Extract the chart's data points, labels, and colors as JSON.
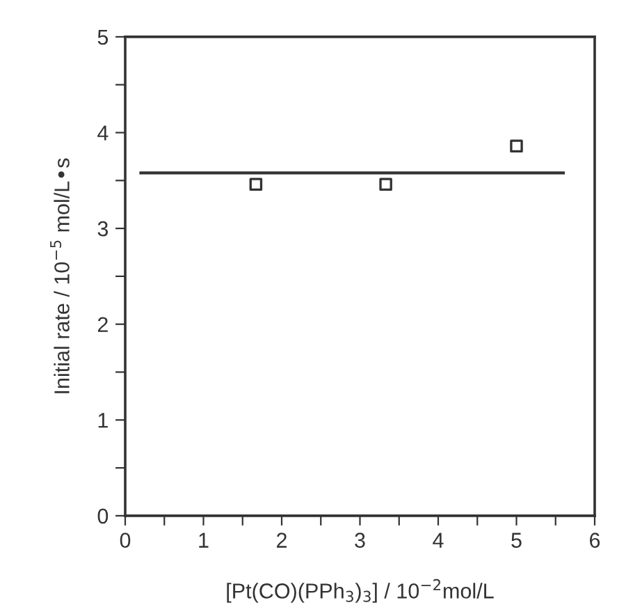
{
  "chart_data": {
    "type": "scatter",
    "xlabel": "[Pt(CO)(PPh$_{3}$)$_{3}$] / 10$^{−2}$mol/L",
    "ylabel": "Initial rate / 10$^{−5}$ mol/L•s",
    "series": [
      {
        "x": [
          1.67,
          3.33,
          5.0
        ],
        "values": [
          3.46,
          3.46,
          3.86
        ],
        "color": "#333333",
        "marker": "square"
      },
      {
        "type": "line",
        "x": [
          0.2,
          5.6
        ],
        "values": [
          3.58,
          3.58
        ],
        "color": "#333333",
        "marker": "none",
        "line_style": "solid"
      }
    ],
    "xlim": [
      0,
      6
    ],
    "ylim": [
      0,
      5
    ],
    "xticks": [
      0,
      {
        "value": 0.5,
        "label": null
      },
      1,
      {
        "value": 1.5,
        "label": null
      },
      2,
      {
        "value": 2.5,
        "label": null
      },
      3,
      {
        "value": 3.5,
        "label": null
      },
      4,
      {
        "value": 4.5,
        "label": null
      },
      5,
      {
        "value": 5.5,
        "label": null
      },
      6
    ],
    "yticks": [
      0,
      {
        "value": 0.5,
        "label": null
      },
      1,
      {
        "value": 1.5,
        "label": null
      },
      2,
      {
        "value": 2.5,
        "label": null
      },
      3,
      {
        "value": 3.5,
        "label": null
      },
      4,
      {
        "value": 4.5,
        "label": null
      },
      5
    ],
    "grid": false,
    "legend": false
  }
}
